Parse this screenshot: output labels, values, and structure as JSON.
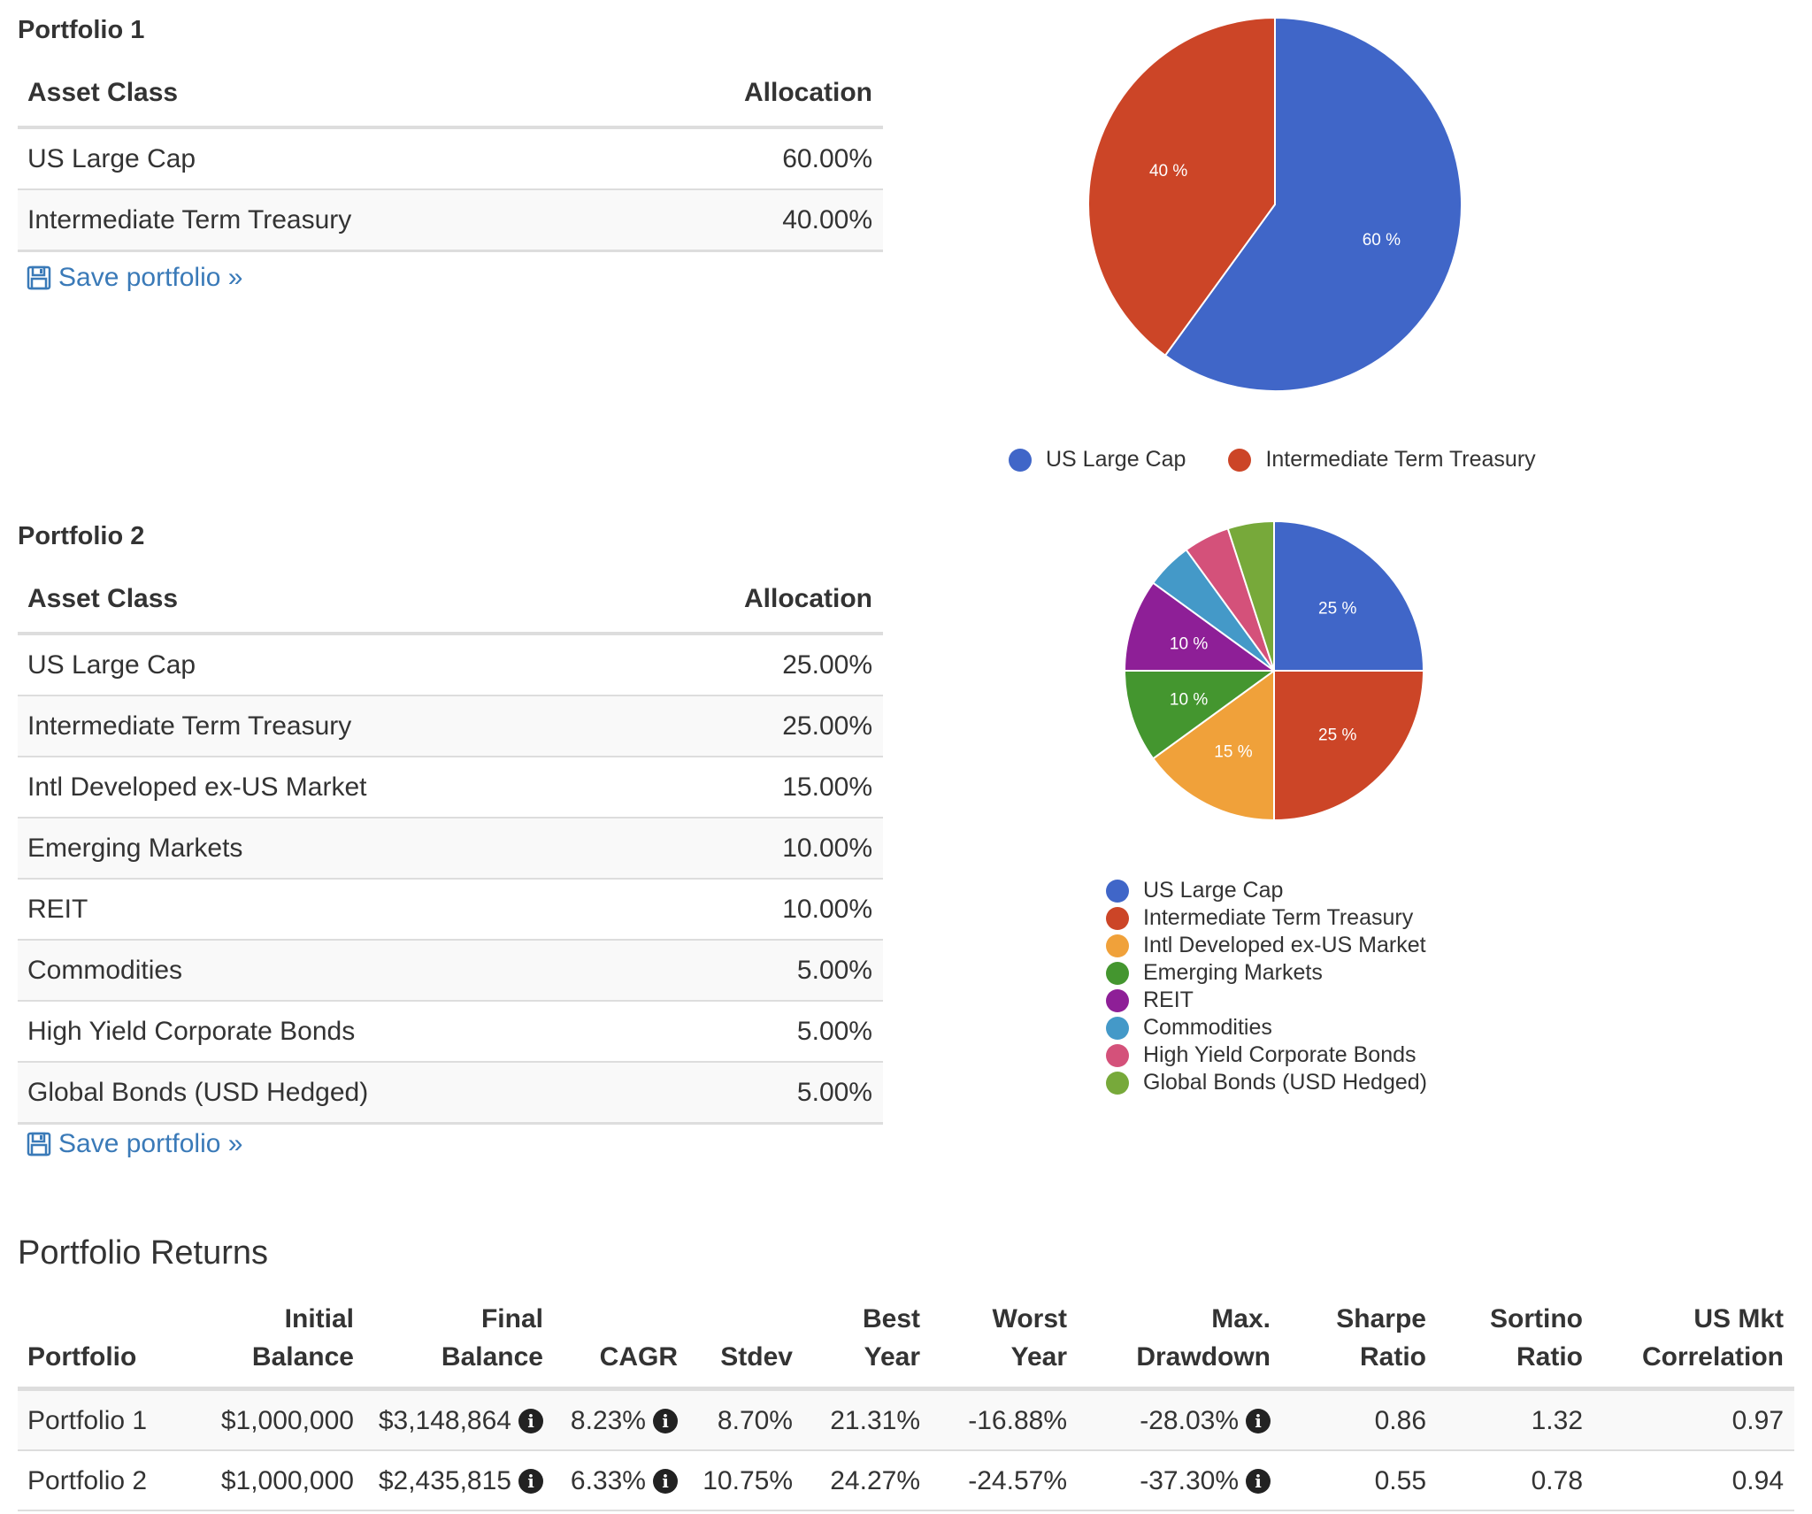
{
  "portfolio1": {
    "title": "Portfolio 1",
    "headers": {
      "asset": "Asset Class",
      "allocation": "Allocation"
    },
    "rows": [
      {
        "asset": "US Large Cap",
        "allocation": "60.00%"
      },
      {
        "asset": "Intermediate Term Treasury",
        "allocation": "40.00%"
      }
    ],
    "save_label": "Save portfolio »"
  },
  "portfolio2": {
    "title": "Portfolio 2",
    "headers": {
      "asset": "Asset Class",
      "allocation": "Allocation"
    },
    "rows": [
      {
        "asset": "US Large Cap",
        "allocation": "25.00%"
      },
      {
        "asset": "Intermediate Term Treasury",
        "allocation": "25.00%"
      },
      {
        "asset": "Intl Developed ex-US Market",
        "allocation": "15.00%"
      },
      {
        "asset": "Emerging Markets",
        "allocation": "10.00%"
      },
      {
        "asset": "REIT",
        "allocation": "10.00%"
      },
      {
        "asset": "Commodities",
        "allocation": "5.00%"
      },
      {
        "asset": "High Yield Corporate Bonds",
        "allocation": "5.00%"
      },
      {
        "asset": "Global Bonds (USD Hedged)",
        "allocation": "5.00%"
      }
    ],
    "save_label": "Save portfolio »"
  },
  "chart_data": [
    {
      "type": "pie",
      "title": "",
      "legend_position": "bottom",
      "slices": [
        {
          "name": "US Large Cap",
          "value": 60,
          "label": "60 %",
          "color": "#4066c8"
        },
        {
          "name": "Intermediate Term Treasury",
          "value": 40,
          "label": "40 %",
          "color": "#cc4527"
        }
      ]
    },
    {
      "type": "pie",
      "title": "",
      "legend_position": "bottom",
      "slices": [
        {
          "name": "US Large Cap",
          "value": 25,
          "label": "25 %",
          "color": "#4066c8"
        },
        {
          "name": "Intermediate Term Treasury",
          "value": 25,
          "label": "25 %",
          "color": "#cc4527"
        },
        {
          "name": "Intl Developed ex-US Market",
          "value": 15,
          "label": "15 %",
          "color": "#f0a13a"
        },
        {
          "name": "Emerging Markets",
          "value": 10,
          "label": "10 %",
          "color": "#44962f"
        },
        {
          "name": "REIT",
          "value": 10,
          "label": "10 %",
          "color": "#8e1f97"
        },
        {
          "name": "Commodities",
          "value": 5,
          "label": "",
          "color": "#4499c8"
        },
        {
          "name": "High Yield Corporate Bonds",
          "value": 5,
          "label": "",
          "color": "#d4517a"
        },
        {
          "name": "Global Bonds (USD Hedged)",
          "value": 5,
          "label": "",
          "color": "#77a93a"
        }
      ]
    }
  ],
  "returns": {
    "title": "Portfolio Returns",
    "headers": [
      {
        "l1": "",
        "l2": "Portfolio"
      },
      {
        "l1": "Initial",
        "l2": "Balance"
      },
      {
        "l1": "Final",
        "l2": "Balance"
      },
      {
        "l1": "",
        "l2": "CAGR"
      },
      {
        "l1": "",
        "l2": "Stdev"
      },
      {
        "l1": "Best",
        "l2": "Year"
      },
      {
        "l1": "Worst",
        "l2": "Year"
      },
      {
        "l1": "Max.",
        "l2": "Drawdown"
      },
      {
        "l1": "Sharpe",
        "l2": "Ratio"
      },
      {
        "l1": "Sortino",
        "l2": "Ratio"
      },
      {
        "l1": "US Mkt",
        "l2": "Correlation"
      }
    ],
    "rows": [
      {
        "portfolio": "Portfolio 1",
        "initial": "$1,000,000",
        "final": "$3,148,864",
        "cagr": "8.23%",
        "stdev": "8.70%",
        "best": "21.31%",
        "worst": "-16.88%",
        "drawdown": "-28.03%",
        "sharpe": "0.86",
        "sortino": "1.32",
        "corr": "0.97"
      },
      {
        "portfolio": "Portfolio 2",
        "initial": "$1,000,000",
        "final": "$2,435,815",
        "cagr": "6.33%",
        "stdev": "10.75%",
        "best": "24.27%",
        "worst": "-24.57%",
        "drawdown": "-37.30%",
        "sharpe": "0.55",
        "sortino": "0.78",
        "corr": "0.94"
      }
    ],
    "info_icon_glyph": "i"
  },
  "icons": {
    "save": "save-floppy-icon",
    "info": "info-circle-icon"
  }
}
